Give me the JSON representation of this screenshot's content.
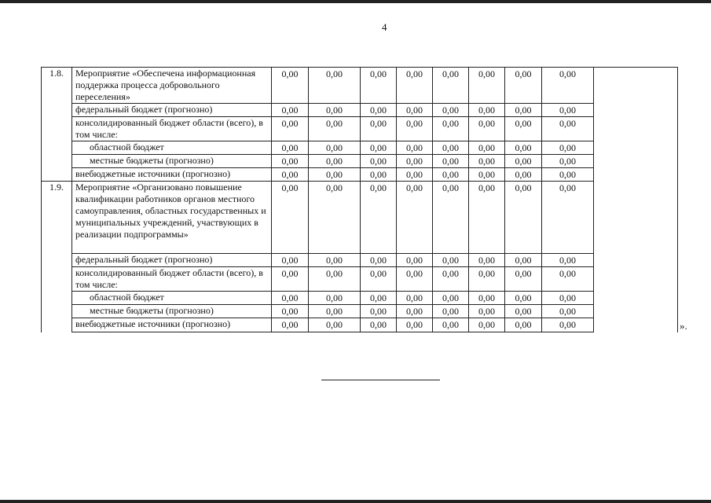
{
  "page_number": "4",
  "closing_quote": "».",
  "groups": [
    {
      "number": "1.8.",
      "rows": [
        {
          "label": "Мероприятие «Обеспечена информационная поддержка процесса добровольного переселения»",
          "indent": false,
          "values": [
            "0,00",
            "0,00",
            "0,00",
            "0,00",
            "0,00",
            "0,00",
            "0,00",
            "0,00"
          ]
        },
        {
          "label": "федеральный бюджет (прогнозно)",
          "indent": false,
          "values": [
            "0,00",
            "0,00",
            "0,00",
            "0,00",
            "0,00",
            "0,00",
            "0,00",
            "0,00"
          ]
        },
        {
          "label": "консолидированный бюджет области (всего), в том числе:",
          "indent": false,
          "values": [
            "0,00",
            "0,00",
            "0,00",
            "0,00",
            "0,00",
            "0,00",
            "0,00",
            "0,00"
          ]
        },
        {
          "label": "областной бюджет",
          "indent": true,
          "values": [
            "0,00",
            "0,00",
            "0,00",
            "0,00",
            "0,00",
            "0,00",
            "0,00",
            "0,00"
          ]
        },
        {
          "label": "местные бюджеты (прогнозно)",
          "indent": true,
          "values": [
            "0,00",
            "0,00",
            "0,00",
            "0,00",
            "0,00",
            "0,00",
            "0,00",
            "0,00"
          ]
        },
        {
          "label": "внебюджетные источники (прогнозно)",
          "indent": false,
          "values": [
            "0,00",
            "0,00",
            "0,00",
            "0,00",
            "0,00",
            "0,00",
            "0,00",
            "0,00"
          ]
        }
      ]
    },
    {
      "number": "1.9.",
      "rows": [
        {
          "label": "Мероприятие «Организовано повышение квалификации работников органов местного самоуправления, областных государственных и муниципальных учреждений, участвующих в реализации подпрограммы»",
          "indent": false,
          "values": [
            "0,00",
            "0,00",
            "0,00",
            "0,00",
            "0,00",
            "0,00",
            "0,00",
            "0,00"
          ]
        },
        {
          "label": "федеральный бюджет (прогнозно)",
          "indent": false,
          "values": [
            "0,00",
            "0,00",
            "0,00",
            "0,00",
            "0,00",
            "0,00",
            "0,00",
            "0,00"
          ]
        },
        {
          "label": "консолидированный бюджет области (всего), в том числе:",
          "indent": false,
          "values": [
            "0,00",
            "0,00",
            "0,00",
            "0,00",
            "0,00",
            "0,00",
            "0,00",
            "0,00"
          ]
        },
        {
          "label": "областной бюджет",
          "indent": true,
          "values": [
            "0,00",
            "0,00",
            "0,00",
            "0,00",
            "0,00",
            "0,00",
            "0,00",
            "0,00"
          ]
        },
        {
          "label": "местные бюджеты (прогнозно)",
          "indent": true,
          "values": [
            "0,00",
            "0,00",
            "0,00",
            "0,00",
            "0,00",
            "0,00",
            "0,00",
            "0,00"
          ]
        },
        {
          "label": "внебюджетные источники (прогнозно)",
          "indent": false,
          "values": [
            "0,00",
            "0,00",
            "0,00",
            "0,00",
            "0,00",
            "0,00",
            "0,00",
            "0,00"
          ]
        }
      ]
    }
  ]
}
